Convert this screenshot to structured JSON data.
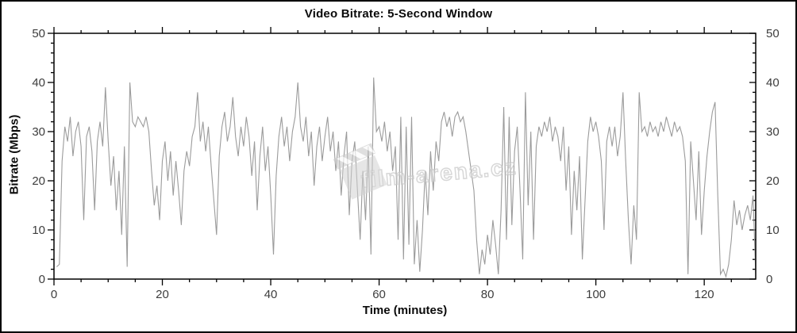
{
  "figure": {
    "title": "Video Bitrate: 5-Second Window",
    "watermark_text": "film-arena.cz"
  },
  "chart_data": {
    "type": "line",
    "title": "Video Bitrate: 5-Second Window",
    "xlabel": "Time (minutes)",
    "ylabel": "Bitrate (Mbps)",
    "xlim": [
      0,
      129.5
    ],
    "ylim": [
      0,
      50
    ],
    "x_major_step": 20,
    "x_minor_step": 5,
    "y_major_step": 10,
    "y_minor_step": 2,
    "x_tick_labels": [
      "0",
      "20",
      "40",
      "60",
      "80",
      "100",
      "120"
    ],
    "y_tick_labels": [
      "0",
      "10",
      "20",
      "30",
      "40",
      "50"
    ],
    "grid": false,
    "legend": null,
    "line_color": "#9b9b9b",
    "axis_color": "#000000",
    "watermark_color": "#c9c9c9",
    "series_name": "video-bitrate-mbps",
    "x_start": 0.5,
    "x_step": 0.5,
    "values": [
      2.5,
      3,
      24,
      31,
      28,
      33,
      25,
      30,
      32,
      27,
      12,
      29,
      31,
      26,
      14,
      28,
      32,
      27,
      39,
      28,
      19,
      25,
      14,
      22,
      9,
      27,
      2.5,
      40,
      32,
      31,
      33,
      32,
      31,
      33,
      30,
      22,
      15,
      19,
      12,
      24,
      28,
      20,
      26,
      17,
      24,
      18,
      11,
      22,
      26,
      23,
      29,
      31,
      38,
      28,
      32,
      26,
      31,
      23,
      16,
      9,
      25,
      31,
      34,
      28,
      31,
      37,
      29,
      25,
      31,
      27,
      33,
      29,
      21,
      28,
      14,
      25,
      31,
      22,
      27,
      17,
      5,
      21,
      29,
      33,
      27,
      31,
      24,
      30,
      33,
      40,
      31,
      28,
      33,
      25,
      30,
      19,
      27,
      31,
      24,
      29,
      33,
      26,
      30,
      22,
      28,
      17,
      25,
      30,
      13,
      24,
      28,
      18,
      8,
      22,
      12,
      27,
      5,
      41,
      30,
      31,
      28,
      32,
      26,
      30,
      22,
      27,
      8,
      33,
      4,
      31,
      7,
      33,
      3,
      12,
      1.5,
      10,
      22,
      13,
      26,
      18,
      28,
      24,
      32,
      34,
      31,
      33,
      29,
      33,
      34,
      32,
      33,
      30,
      26,
      22,
      18,
      8,
      1,
      6,
      3,
      9,
      5,
      12,
      7,
      1,
      14,
      35,
      8,
      33,
      11,
      26,
      31,
      18,
      4,
      38,
      15,
      30,
      8,
      27,
      31,
      29,
      32,
      30,
      33,
      28,
      31,
      29,
      24,
      31,
      18,
      27,
      9,
      22,
      14,
      25,
      4,
      16,
      28,
      33,
      30,
      32,
      29,
      24,
      10,
      28,
      31,
      27,
      31,
      25,
      29,
      38,
      24,
      12,
      3,
      15,
      8,
      38,
      30,
      31,
      29,
      32,
      30,
      31,
      29,
      32,
      30,
      33,
      31,
      29,
      32,
      30,
      31,
      29,
      24,
      1,
      28,
      20,
      12,
      26,
      9,
      18,
      25,
      30,
      34,
      36,
      17,
      1,
      2,
      0.5,
      3,
      8,
      16,
      11,
      14,
      10,
      13,
      15,
      12,
      17,
      1
    ]
  }
}
